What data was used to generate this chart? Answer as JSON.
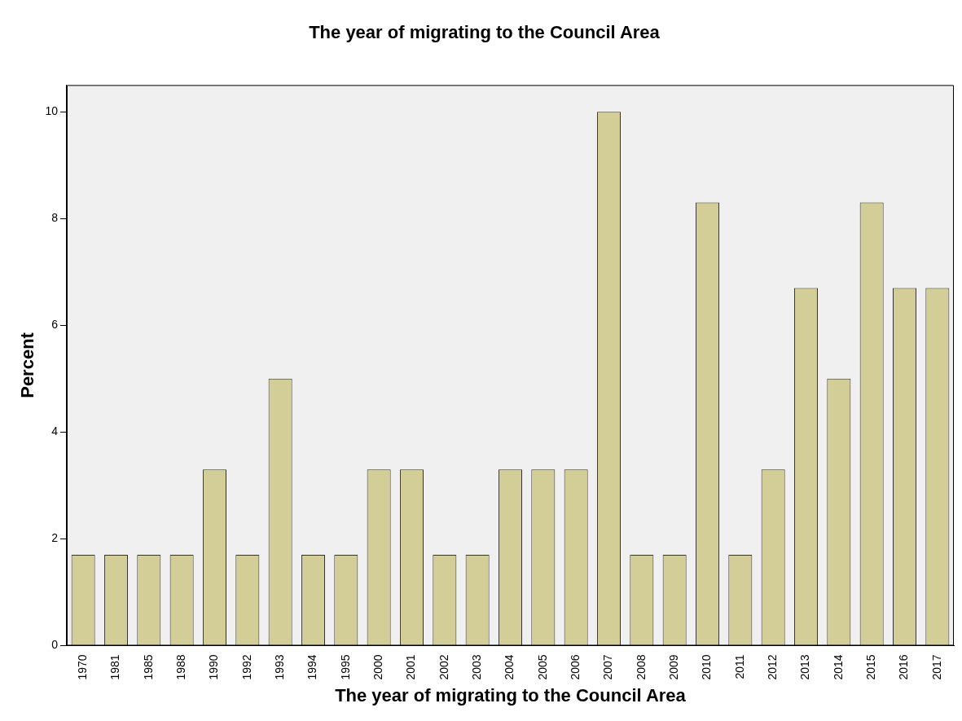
{
  "chart_data": {
    "type": "bar",
    "title": "The year of migrating to the Council Area",
    "xlabel": "The year of migrating to the Council Area",
    "ylabel": "Percent",
    "categories": [
      "1970",
      "1981",
      "1985",
      "1988",
      "1990",
      "1992",
      "1993",
      "1994",
      "1995",
      "2000",
      "2001",
      "2002",
      "2003",
      "2004",
      "2005",
      "2006",
      "2007",
      "2008",
      "2009",
      "2010",
      "2011",
      "2012",
      "2013",
      "2014",
      "2015",
      "2016",
      "2017"
    ],
    "values": [
      1.7,
      1.7,
      1.7,
      1.7,
      3.3,
      1.7,
      5,
      1.7,
      1.7,
      3.3,
      3.3,
      1.7,
      1.7,
      3.3,
      3.3,
      3.3,
      10,
      1.7,
      1.7,
      8.3,
      1.7,
      3.3,
      6.7,
      5,
      8.3,
      6.7,
      6.7
    ],
    "color": "#d3ce97",
    "ylim": [
      0,
      10.5
    ],
    "yticks": [
      0,
      2,
      4,
      6,
      8,
      10
    ],
    "grid": false,
    "legend": false
  }
}
